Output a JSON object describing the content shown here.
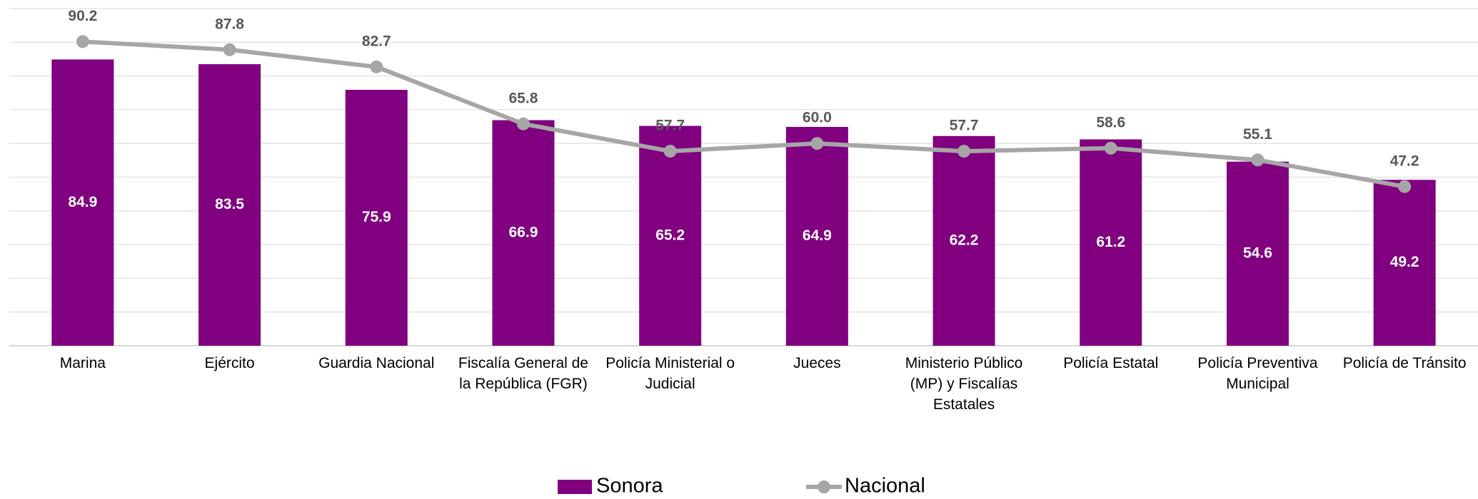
{
  "chart_data": {
    "type": "bar_line",
    "categories": [
      "Marina",
      "Ejército",
      "Guardia Nacional",
      "Fiscalía General de la República (FGR)",
      "Policía Ministerial o Judicial",
      "Jueces",
      "Ministerio Público (MP) y Fiscalías Estatales",
      "Policía Estatal",
      "Policía Preventiva Municipal",
      "Policía de Tránsito"
    ],
    "series": [
      {
        "name": "Sonora",
        "type": "bar",
        "color": "#800080",
        "values": [
          84.9,
          83.5,
          75.9,
          66.9,
          65.2,
          64.9,
          62.2,
          61.2,
          54.6,
          49.2
        ],
        "value_labels": [
          "84.9",
          "83.5",
          "75.9",
          "66.9",
          "65.2",
          "64.9",
          "62.2",
          "61.2",
          "54.6",
          "49.2"
        ]
      },
      {
        "name": "Nacional",
        "type": "line",
        "color": "#a6a6a6",
        "values": [
          90.2,
          87.8,
          82.7,
          65.8,
          57.7,
          60.0,
          57.7,
          58.6,
          55.1,
          47.2
        ],
        "value_labels": [
          "90.2",
          "87.8",
          "82.7",
          "65.8",
          "57.7",
          "60.0",
          "57.7",
          "58.6",
          "55.1",
          "47.2"
        ]
      }
    ],
    "ylim": [
      0,
      100
    ],
    "yticks": [
      0,
      10,
      20,
      30,
      40,
      50,
      60,
      70,
      80,
      90,
      100
    ],
    "grid": true,
    "legend": "bottom"
  }
}
